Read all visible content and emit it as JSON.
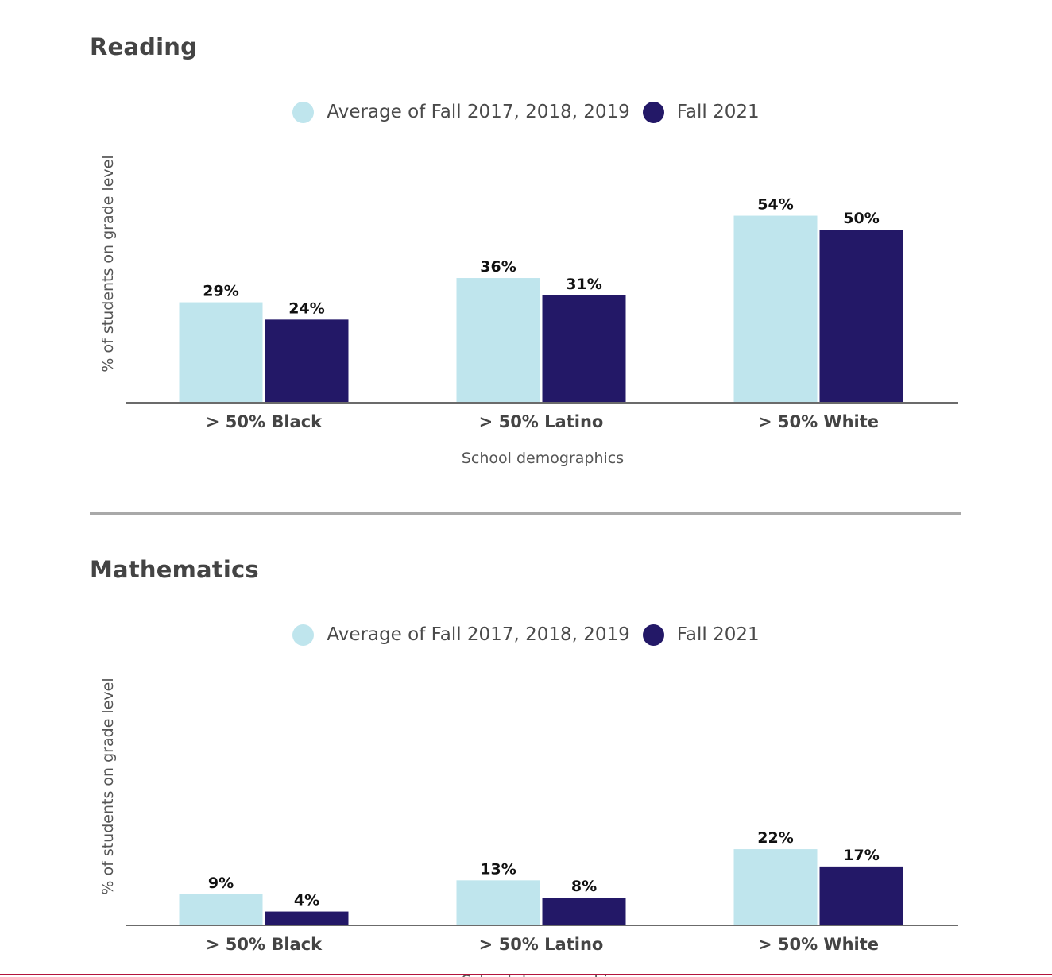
{
  "colors": {
    "baseline": "#bfe5ed",
    "fall2021": "#231867",
    "axis": "#6b6b6b",
    "divider": "#a9a9a9",
    "footer_rule": "#b3143c"
  },
  "sections": [
    {
      "title": "Reading",
      "legend": [
        {
          "label": "Average of Fall 2017, 2018, 2019"
        },
        {
          "label": "Fall 2021"
        }
      ]
    },
    {
      "title": "Mathematics",
      "legend": [
        {
          "label": "Average of Fall 2017, 2018, 2019"
        },
        {
          "label": "Fall 2021"
        }
      ]
    }
  ],
  "chart_data": [
    {
      "type": "bar",
      "title": "Reading",
      "categories": [
        "> 50% Black",
        "> 50% Latino",
        "> 50% White"
      ],
      "series": [
        {
          "name": "Average of Fall 2017, 2018, 2019",
          "values": [
            29,
            36,
            54
          ],
          "labels": [
            "29%",
            "36%",
            "54%"
          ]
        },
        {
          "name": "Fall 2021",
          "values": [
            24,
            31,
            50
          ],
          "labels": [
            "24%",
            "31%",
            "50%"
          ]
        }
      ],
      "xlabel": "School demographics",
      "ylabel": "% of students on grade level",
      "ylim": [
        0,
        70
      ],
      "grid": false,
      "legend_position": "top-center"
    },
    {
      "type": "bar",
      "title": "Mathematics",
      "categories": [
        "> 50% Black",
        "> 50% Latino",
        "> 50% White"
      ],
      "series": [
        {
          "name": "Average of Fall 2017, 2018, 2019",
          "values": [
            9,
            13,
            22
          ],
          "labels": [
            "9%",
            "13%",
            "22%"
          ]
        },
        {
          "name": "Fall 2021",
          "values": [
            4,
            8,
            17
          ],
          "labels": [
            "4%",
            "8%",
            "17%"
          ]
        }
      ],
      "xlabel": "School demographics",
      "ylabel": "% of students on grade level",
      "ylim": [
        0,
        70
      ],
      "grid": false,
      "legend_position": "top-center"
    }
  ]
}
